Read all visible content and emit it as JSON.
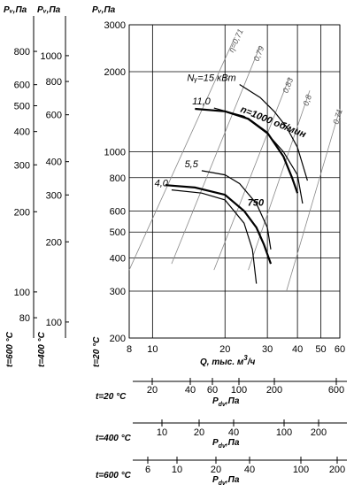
{
  "chart_data": {
    "type": "line",
    "x_axis": {
      "label_prefix": "Q, тыс. м",
      "label_sup": "3",
      "label_suffix": "/ч",
      "scale": "log",
      "range": [
        8,
        60
      ],
      "ticks": [
        "8",
        "10",
        "20",
        "30",
        "40",
        "50",
        "60"
      ]
    },
    "y_axis": {
      "label": "Pᵥ,Па",
      "scale": "log",
      "range": [
        200,
        3000
      ],
      "ticks": [
        "200",
        "300",
        "400",
        "500",
        "600",
        "800",
        "1000",
        "2000",
        "3000"
      ],
      "temp_label": "t=20 °C"
    },
    "aux_y_axes": [
      {
        "label": "Pᵥ,Па",
        "temp_label": "t=600 °C",
        "ticks": [
          "80",
          "100",
          "200",
          "300",
          "400",
          "500",
          "600",
          "800"
        ]
      },
      {
        "label": "Pᵥ,Па",
        "temp_label": "t=400 °C",
        "ticks": [
          "100",
          "200",
          "300",
          "400",
          "600",
          "800",
          "1000"
        ]
      }
    ],
    "dynamic_pressure_scales": [
      {
        "temp_label": "t=20 °C",
        "label": "P",
        "label_sub": "dv",
        "label_unit": ",Па",
        "ticks": [
          "20",
          "40",
          "60",
          "100",
          "200",
          "600"
        ]
      },
      {
        "temp_label": "t=400 °C",
        "label": "P",
        "label_sub": "dv",
        "label_unit": ",Па",
        "ticks": [
          "10",
          "20",
          "40",
          "100",
          "200"
        ]
      },
      {
        "temp_label": "t=600 °C",
        "label": "P",
        "label_sub": "dv",
        "label_unit": ",Па",
        "ticks": [
          "6",
          "10",
          "20",
          "40",
          "100",
          "200"
        ]
      }
    ],
    "grid": true,
    "speed_curves": [
      {
        "name": "n=1000 об/мин",
        "points": [
          [
            15,
            1450
          ],
          [
            20,
            1420
          ],
          [
            25,
            1330
          ],
          [
            30,
            1180
          ],
          [
            35,
            960
          ],
          [
            38,
            800
          ],
          [
            40,
            700
          ]
        ]
      },
      {
        "name": "750",
        "points": [
          [
            11.3,
            750
          ],
          [
            15,
            735
          ],
          [
            20,
            690
          ],
          [
            24,
            600
          ],
          [
            27,
            520
          ],
          [
            29,
            450
          ],
          [
            31,
            380
          ]
        ]
      }
    ],
    "power_curves": [
      {
        "name": "Nᵧ=15 кВт",
        "points": [
          [
            23,
            1790
          ],
          [
            28,
            1600
          ],
          [
            32,
            1420
          ],
          [
            36,
            1240
          ],
          [
            40,
            1040
          ],
          [
            44,
            780
          ]
        ]
      },
      {
        "name": "11,0",
        "points": [
          [
            18,
            1460
          ],
          [
            24,
            1360
          ],
          [
            30,
            1170
          ],
          [
            35,
            1000
          ],
          [
            40,
            820
          ],
          [
            42,
            640
          ]
        ]
      },
      {
        "name": "5,5",
        "points": [
          [
            16,
            850
          ],
          [
            20,
            820
          ],
          [
            23,
            760
          ],
          [
            27,
            640
          ],
          [
            30,
            520
          ],
          [
            31,
            430
          ]
        ]
      },
      {
        "name": "4,0",
        "points": [
          [
            12,
            720
          ],
          [
            16,
            700
          ],
          [
            20,
            660
          ],
          [
            24,
            540
          ],
          [
            26,
            430
          ],
          [
            27,
            320
          ]
        ]
      }
    ],
    "efficiency_lines": [
      {
        "name": "η=0,71",
        "points": [
          [
            8,
            360
          ],
          [
            22,
            2700
          ]
        ]
      },
      {
        "name": "0,79",
        "points": [
          [
            12,
            380
          ],
          [
            28,
            2500
          ]
        ]
      },
      {
        "name": "0,83",
        "points": [
          [
            18,
            360
          ],
          [
            37,
            1900
          ]
        ]
      },
      {
        "name": "0,8",
        "points": [
          [
            25,
            360
          ],
          [
            45,
            1700
          ]
        ]
      },
      {
        "name": "0,71",
        "points": [
          [
            36,
            300
          ],
          [
            60,
            1450
          ]
        ]
      }
    ]
  }
}
